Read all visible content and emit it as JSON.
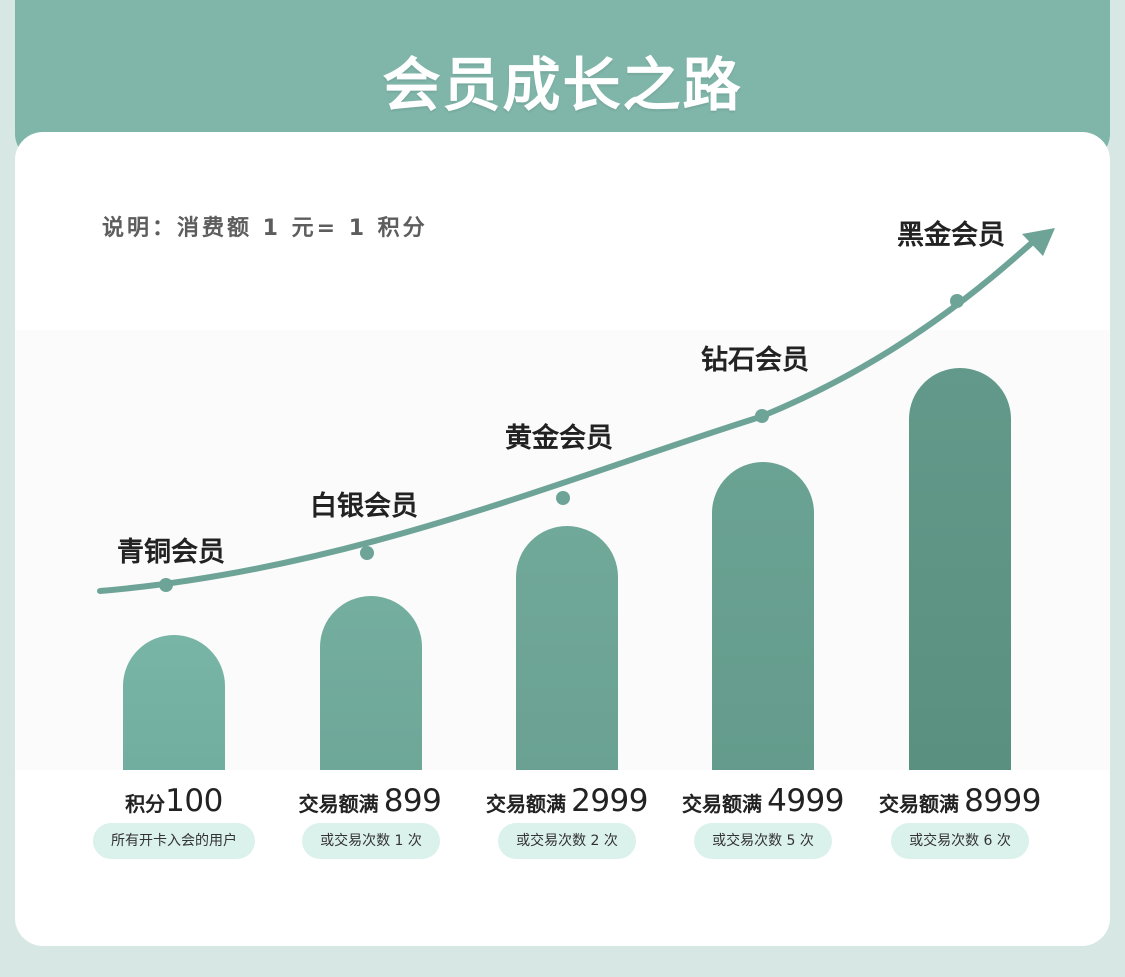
{
  "title": "会员成长之路",
  "note": "说明：消费额 1 元= 1 积分",
  "levels": [
    {
      "name": "青铜会员",
      "condition_prefix": "积分",
      "condition_value": "100",
      "requirement": "所有开卡入会的用户"
    },
    {
      "name": "白银会员",
      "condition_prefix": "交易额满",
      "condition_value": "899",
      "requirement": "或交易次数 1 次"
    },
    {
      "name": "黄金会员",
      "condition_prefix": "交易额满",
      "condition_value": "2999",
      "requirement": "或交易次数 2 次"
    },
    {
      "name": "钻石会员",
      "condition_prefix": "交易额满",
      "condition_value": "4999",
      "requirement": "或交易次数 5 次"
    },
    {
      "name": "黑金会员",
      "condition_prefix": "交易额满",
      "condition_value": "8999",
      "requirement": "或交易次数 6 次"
    }
  ],
  "colors": {
    "header": "#80b6aa",
    "curve": "#6ea497",
    "pill": "#dbf1ec",
    "bars": [
      "#76b3a5",
      "#71ab9d",
      "#6da596",
      "#679e8f",
      "#5c9281"
    ]
  }
}
